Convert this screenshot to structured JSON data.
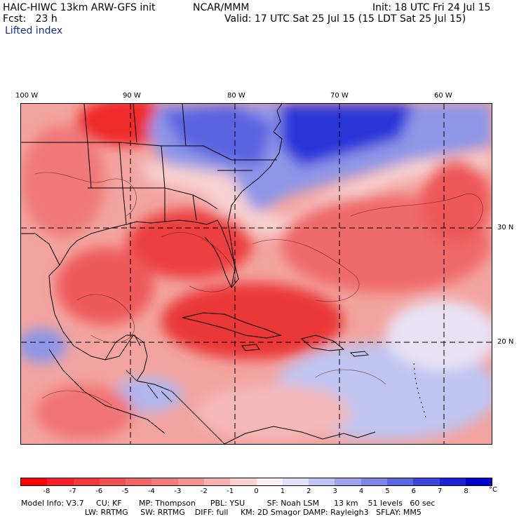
{
  "header": {
    "model_title": "HAIC-HIWC 13km ARW-GFS init",
    "institution": "NCAR/MMM",
    "init_time": "Init: 18 UTC Fri 24 Jul 15",
    "forecast_hour": "Fcst:   23 h",
    "valid_time": "Valid: 17 UTC Sat 25 Jul 15 (15 LDT Sat 25 Jul 15)",
    "field_name": "Lifted index"
  },
  "map": {
    "longitude_labels": [
      "100 W",
      "90 W",
      "80 W",
      "70 W",
      "60 W"
    ],
    "latitude_labels": [
      "30 N",
      "20 N"
    ],
    "colors": {
      "background": "#f4a8a4",
      "border_lines": "#000000",
      "grid_lines": "#000000"
    }
  },
  "colorbar": {
    "labels": [
      "-8",
      "-7",
      "-6",
      "-5",
      "-4",
      "-3",
      "-2",
      "-1",
      "0",
      "1",
      "2",
      "3",
      "4",
      "5",
      "6",
      "7",
      "8"
    ],
    "unit": "°C",
    "colors": [
      "#ff0000",
      "#f5202a",
      "#f23a3a",
      "#ef5050",
      "#f06666",
      "#f27c7c",
      "#f49494",
      "#f7b0b0",
      "#fad0d0",
      "#fdf0f0",
      "#e0e2fa",
      "#c0c4f4",
      "#9ea4ee",
      "#7e86e8",
      "#5e68e2",
      "#3c46dc",
      "#1a22d6",
      "#0000cc"
    ]
  },
  "footer": {
    "line1": "Model Info: V3.7     CU: KF       MP: Thompson      PBL: YSU         SF: Noah LSM      13 km    51 levels   60 sec",
    "line2": "                          LW: RRTMG     SW: RRTMG    DIFF: full     KM: 2D Smagor DAMP: Rayleigh3   SFLAY: MM5"
  }
}
